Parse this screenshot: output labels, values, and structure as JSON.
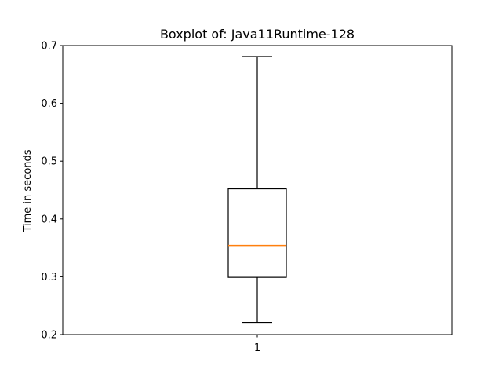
{
  "chart_data": {
    "type": "boxplot",
    "title": "Boxplot of: Java11Runtime-128",
    "xlabel": "",
    "ylabel": "Time in seconds",
    "ylim": [
      0.2,
      0.7
    ],
    "yticks": [
      "0.2",
      "0.3",
      "0.4",
      "0.5",
      "0.6",
      "0.7"
    ],
    "categories": [
      "1"
    ],
    "boxes": [
      {
        "category": "1",
        "whisker_low": 0.221,
        "q1": 0.299,
        "median": 0.354,
        "q3": 0.452,
        "whisker_high": 0.681
      }
    ],
    "grid": false,
    "colors": {
      "box": "#000000",
      "median": "#ff7f0e"
    }
  }
}
